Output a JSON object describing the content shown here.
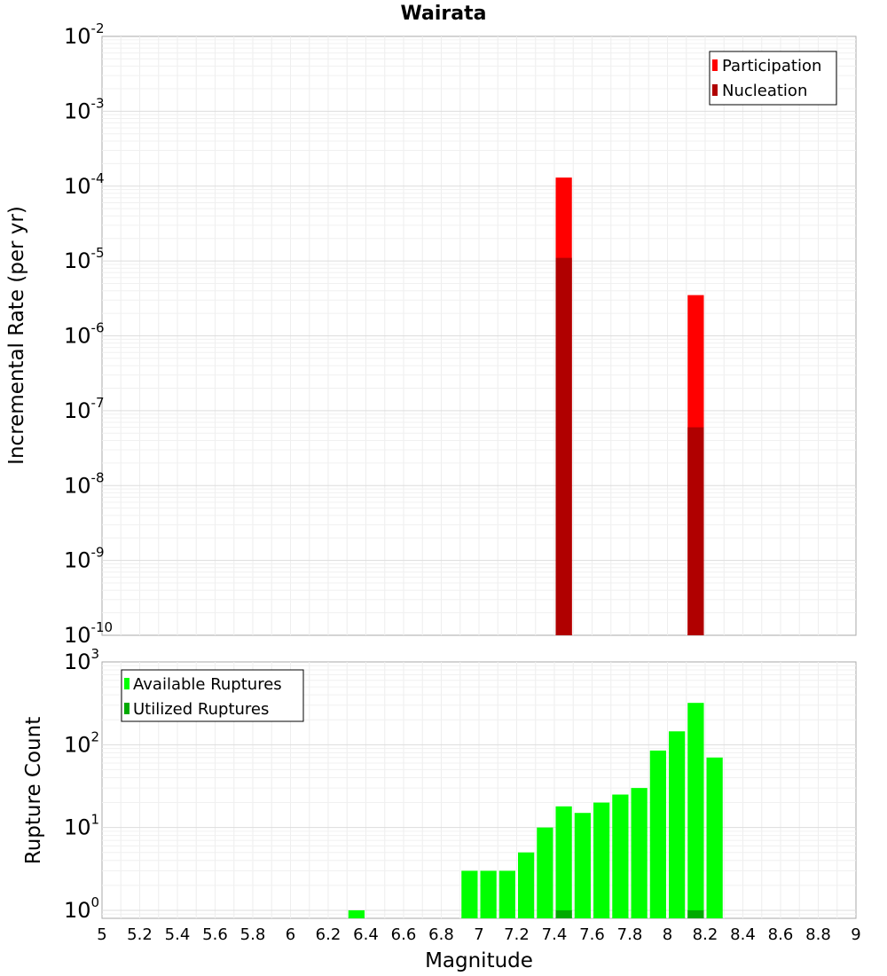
{
  "chart_data": [
    {
      "type": "bar",
      "title": "Wairata",
      "ylabel": "Incremental Rate (per yr)",
      "yscale": "log",
      "ylim": [
        1e-10,
        0.01
      ],
      "ytick_labels": [
        {
          "base": "10",
          "exp": "-10"
        },
        {
          "base": "10",
          "exp": "-9"
        },
        {
          "base": "10",
          "exp": "-8"
        },
        {
          "base": "10",
          "exp": "-7"
        },
        {
          "base": "10",
          "exp": "-6"
        },
        {
          "base": "10",
          "exp": "-5"
        },
        {
          "base": "10",
          "exp": "-4"
        },
        {
          "base": "10",
          "exp": "-3"
        },
        {
          "base": "10",
          "exp": "-2"
        }
      ],
      "xlim": [
        5,
        9
      ],
      "bin_width": 0.1,
      "grid": true,
      "legend_position": "top-right",
      "series": [
        {
          "name": "Participation",
          "color": "#ff0000",
          "x": [
            7.45,
            8.15
          ],
          "values": [
            0.00013,
            3.5e-06
          ]
        },
        {
          "name": "Nucleation",
          "color": "#b00000",
          "x": [
            7.45,
            8.15
          ],
          "values": [
            1.1e-05,
            6e-08
          ]
        }
      ]
    },
    {
      "type": "bar",
      "ylabel": "Rupture Count",
      "xlabel": "Magnitude",
      "yscale": "log",
      "ylim": [
        0.8,
        1000
      ],
      "ytick_labels": [
        {
          "base": "10",
          "exp": "0"
        },
        {
          "base": "10",
          "exp": "1"
        },
        {
          "base": "10",
          "exp": "2"
        },
        {
          "base": "10",
          "exp": "3"
        }
      ],
      "xlim": [
        5,
        9
      ],
      "xtick_labels": [
        "5",
        "5.2",
        "5.4",
        "5.6",
        "5.8",
        "6",
        "6.2",
        "6.4",
        "6.6",
        "6.8",
        "7",
        "7.2",
        "7.4",
        "7.6",
        "7.8",
        "8",
        "8.2",
        "8.4",
        "8.6",
        "8.8",
        "9"
      ],
      "bin_width": 0.1,
      "grid": true,
      "legend_position": "top-left",
      "series": [
        {
          "name": "Available Ruptures",
          "color": "#00ff00",
          "x": [
            6.35,
            6.95,
            7.05,
            7.15,
            7.25,
            7.35,
            7.45,
            7.55,
            7.65,
            7.75,
            7.85,
            7.95,
            8.05,
            8.15,
            8.25
          ],
          "values": [
            1,
            3,
            3,
            3,
            5,
            10,
            18,
            15,
            20,
            25,
            30,
            85,
            145,
            320,
            70
          ]
        },
        {
          "name": "Utilized Ruptures",
          "color": "#00aa00",
          "x": [
            7.45,
            8.15
          ],
          "values": [
            1,
            1
          ]
        }
      ]
    }
  ]
}
